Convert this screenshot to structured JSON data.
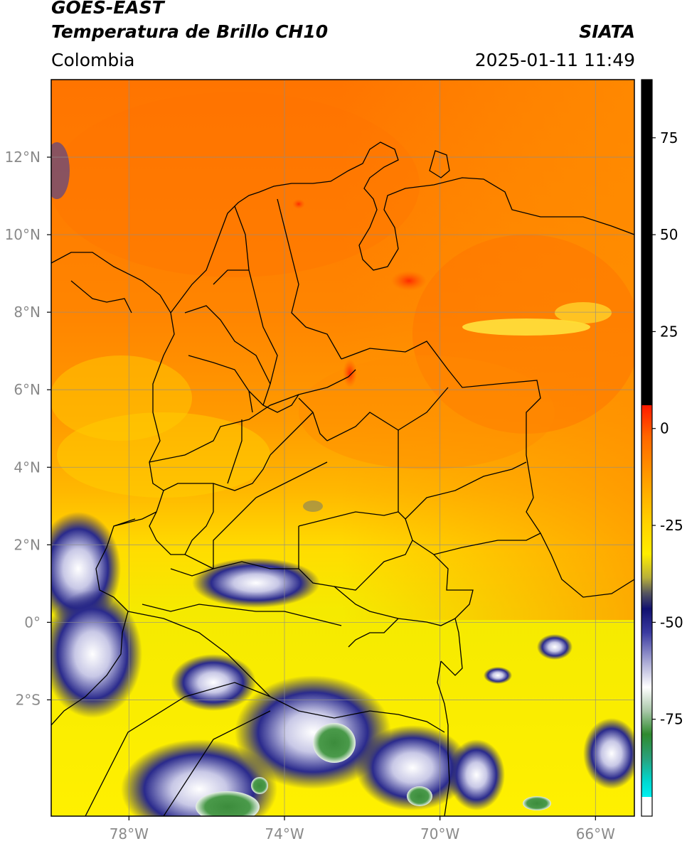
{
  "header": {
    "satellite": "GOES-EAST",
    "product": "Temperatura de Brillo CH10",
    "organization": "SIATA",
    "region": "Colombia",
    "datetime": "2025-01-11 11:49"
  },
  "map": {
    "lon_range": [
      -80,
      -65
    ],
    "lat_range": [
      -5,
      14
    ],
    "lon_ticks": [
      {
        "value": -78,
        "label": "78°W"
      },
      {
        "value": -74,
        "label": "74°W"
      },
      {
        "value": -70,
        "label": "70°W"
      },
      {
        "value": -66,
        "label": "66°W"
      }
    ],
    "lat_ticks": [
      {
        "value": 12,
        "label": "12°N"
      },
      {
        "value": 10,
        "label": "10°N"
      },
      {
        "value": 8,
        "label": "8°N"
      },
      {
        "value": 6,
        "label": "6°N"
      },
      {
        "value": 4,
        "label": "4°N"
      },
      {
        "value": 2,
        "label": "2°N"
      },
      {
        "value": 0,
        "label": "0°"
      },
      {
        "value": -2,
        "label": "2°S"
      }
    ],
    "gridlines": true
  },
  "colorbar": {
    "range": [
      -100,
      90
    ],
    "ticks": [
      {
        "value": 75,
        "label": "75"
      },
      {
        "value": 50,
        "label": "50"
      },
      {
        "value": 25,
        "label": "25"
      },
      {
        "value": 0,
        "label": "0"
      },
      {
        "value": -25,
        "label": "-25"
      },
      {
        "value": -50,
        "label": "-50"
      },
      {
        "value": -75,
        "label": "-75"
      }
    ]
  },
  "colors": {
    "warm_top": "#ff7a00",
    "orange": "#ff9900",
    "yellow": "#ffe800",
    "navy": "#1a1a80",
    "green": "#3a8a3a",
    "cyan": "#00e5e5",
    "black": "#000000"
  }
}
